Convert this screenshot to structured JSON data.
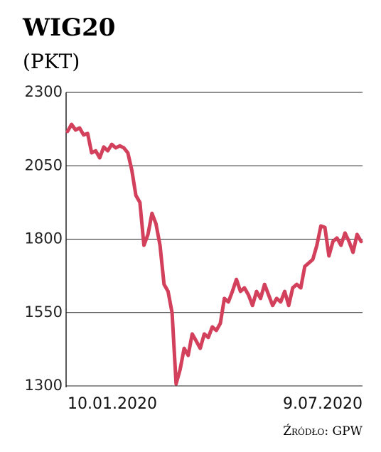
{
  "chart_data": {
    "type": "line",
    "title": "WIG20",
    "subtitle": "(PKT)",
    "source": "Źródło: GPW",
    "categories": [
      "10.01.2020",
      null,
      null,
      null,
      null,
      null,
      null,
      null,
      null,
      null,
      null,
      null,
      null,
      null,
      null,
      null,
      null,
      null,
      null,
      null,
      null,
      null,
      null,
      null,
      null,
      null,
      null,
      null,
      null,
      null,
      null,
      null,
      null,
      null,
      null,
      null,
      null,
      null,
      null,
      null,
      null,
      null,
      null,
      null,
      null,
      null,
      null,
      null,
      null,
      null,
      null,
      null,
      null,
      null,
      null,
      null,
      null,
      null,
      null,
      null,
      null,
      null,
      null,
      null,
      null,
      null,
      null,
      null,
      null,
      null,
      null,
      null,
      null,
      "9.07.2020"
    ],
    "series": [
      {
        "name": "WIG20",
        "color": "#d3405b",
        "values": [
          2167,
          2191,
          2172,
          2179,
          2155,
          2160,
          2094,
          2101,
          2077,
          2114,
          2101,
          2123,
          2111,
          2118,
          2111,
          2094,
          2034,
          1949,
          1925,
          1779,
          1816,
          1888,
          1852,
          1779,
          1646,
          1622,
          1549,
          1307,
          1356,
          1428,
          1404,
          1477,
          1453,
          1428,
          1477,
          1465,
          1501,
          1489,
          1513,
          1598,
          1586,
          1622,
          1663,
          1622,
          1634,
          1610,
          1574,
          1622,
          1598,
          1646,
          1610,
          1574,
          1598,
          1586,
          1622,
          1574,
          1634,
          1646,
          1634,
          1707,
          1719,
          1731,
          1779,
          1845,
          1840,
          1743,
          1792,
          1804,
          1779,
          1821,
          1792,
          1755,
          1816,
          1792
        ]
      }
    ],
    "ylim": [
      1300,
      2300
    ],
    "yticks": [
      1300,
      1550,
      1800,
      2050,
      2300
    ],
    "grid": true
  }
}
